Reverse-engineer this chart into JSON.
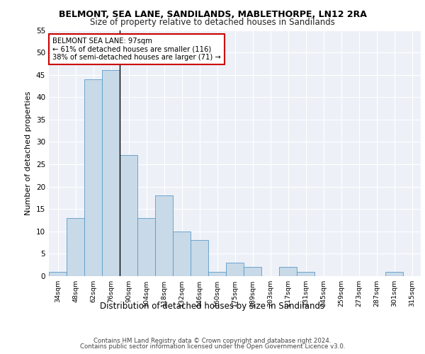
{
  "title1": "BELMONT, SEA LANE, SANDILANDS, MABLETHORPE, LN12 2RA",
  "title2": "Size of property relative to detached houses in Sandilands",
  "xlabel": "Distribution of detached houses by size in Sandilands",
  "ylabel": "Number of detached properties",
  "categories": [
    "34sqm",
    "48sqm",
    "62sqm",
    "76sqm",
    "90sqm",
    "104sqm",
    "118sqm",
    "132sqm",
    "146sqm",
    "160sqm",
    "175sqm",
    "189sqm",
    "203sqm",
    "217sqm",
    "231sqm",
    "245sqm",
    "259sqm",
    "273sqm",
    "287sqm",
    "301sqm",
    "315sqm"
  ],
  "values": [
    1,
    13,
    44,
    46,
    27,
    13,
    18,
    10,
    8,
    1,
    3,
    2,
    0,
    2,
    1,
    0,
    0,
    0,
    0,
    1,
    0
  ],
  "bar_color": "#c8d9e8",
  "bar_edge_color": "#5b9ac9",
  "property_line_index": 4,
  "annotation_title": "BELMONT SEA LANE: 97sqm",
  "annotation_line1": "← 61% of detached houses are smaller (116)",
  "annotation_line2": "38% of semi-detached houses are larger (71) →",
  "annotation_box_color": "#ffffff",
  "annotation_box_edge": "#cc0000",
  "ylim": [
    0,
    55
  ],
  "yticks": [
    0,
    5,
    10,
    15,
    20,
    25,
    30,
    35,
    40,
    45,
    50,
    55
  ],
  "bg_color": "#edf1f7",
  "footer1": "Contains HM Land Registry data © Crown copyright and database right 2024.",
  "footer2": "Contains public sector information licensed under the Open Government Licence v3.0."
}
